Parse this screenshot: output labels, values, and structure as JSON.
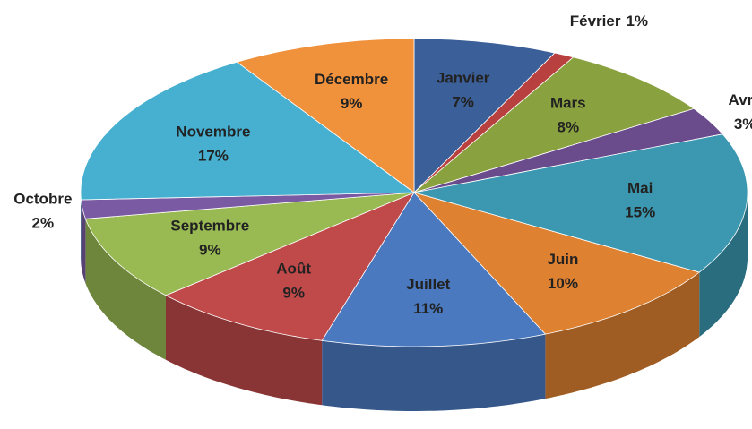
{
  "chart_data": {
    "type": "pie",
    "categories": [
      "Janvier",
      "Février",
      "Mars",
      "Avril",
      "Mai",
      "Juin",
      "Juillet",
      "Août",
      "Septembre",
      "Octobre",
      "Novembre",
      "Décembre"
    ],
    "values": [
      7,
      1,
      8,
      3,
      15,
      10,
      11,
      9,
      9,
      2,
      17,
      9
    ],
    "value_labels": [
      "7%",
      "1%",
      "8%",
      "3%",
      "15%",
      "10%",
      "11%",
      "9%",
      "9%",
      "2%",
      "17%",
      "9%"
    ],
    "colors": [
      "#3b5f98",
      "#b8403f",
      "#8aa13f",
      "#6a4b8c",
      "#3b98b0",
      "#de8131",
      "#4a79bf",
      "#c0494a",
      "#99b953",
      "#7a5aa2",
      "#47afd0",
      "#f0913b"
    ]
  }
}
